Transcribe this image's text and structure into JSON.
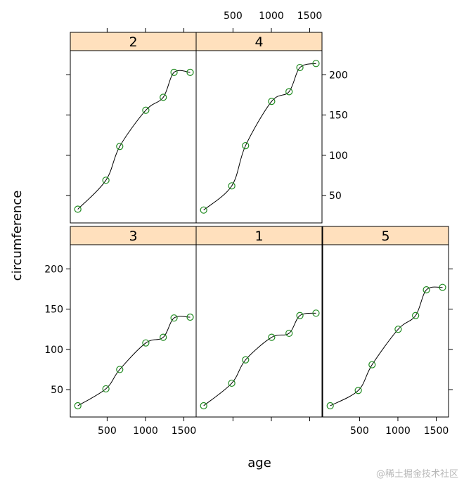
{
  "chart_data": {
    "type": "scatter",
    "xlabel": "age",
    "ylabel": "circumference",
    "xlim": [
      20,
      1660
    ],
    "ylim": [
      16,
      230
    ],
    "x_ticks": [
      500,
      1000,
      1500
    ],
    "y_ticks": [
      50,
      100,
      150,
      200
    ],
    "x_tick_labels": [
      "500",
      "1000",
      "1500"
    ],
    "y_tick_labels": [
      "50",
      "100",
      "150",
      "200"
    ],
    "strip_color": "#ffe0bd",
    "point_color": "#1f8a1f",
    "line_color": "#000000",
    "smooth_line": true,
    "panels": [
      {
        "label": "3",
        "x": [
          118,
          484,
          664,
          1004,
          1231,
          1372,
          1582
        ],
        "y": [
          30,
          51,
          75,
          108,
          115,
          139,
          140
        ]
      },
      {
        "label": "1",
        "x": [
          118,
          484,
          664,
          1004,
          1231,
          1372,
          1582
        ],
        "y": [
          30,
          58,
          87,
          115,
          120,
          142,
          145
        ]
      },
      {
        "label": "5",
        "x": [
          118,
          484,
          664,
          1004,
          1231,
          1372,
          1582
        ],
        "y": [
          30,
          49,
          81,
          125,
          142,
          174,
          177
        ]
      },
      {
        "label": "2",
        "x": [
          118,
          484,
          664,
          1004,
          1231,
          1372,
          1582
        ],
        "y": [
          33,
          69,
          111,
          156,
          172,
          203,
          203
        ]
      },
      {
        "label": "4",
        "x": [
          118,
          484,
          664,
          1004,
          1231,
          1372,
          1582
        ],
        "y": [
          32,
          62,
          112,
          167,
          179,
          209,
          214
        ]
      }
    ]
  },
  "watermark": "@稀土掘金技术社区"
}
